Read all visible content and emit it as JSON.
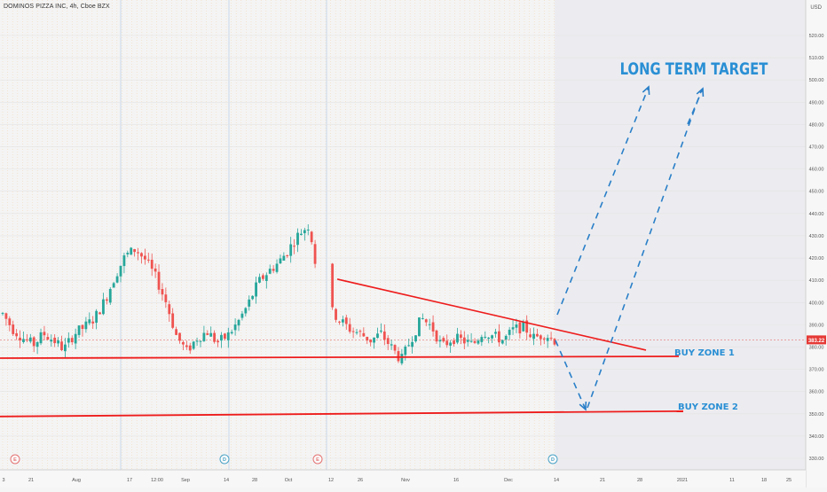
{
  "header": {
    "symbol_title": "DOMINOS PIZZA INC, 4h, Cboe BZX",
    "currency": "USD"
  },
  "annotations": {
    "long_term_target": "LONG TERM TARGET",
    "buy_zone_1": "BUY ZONE 1",
    "buy_zone_2": "BUY ZONE 2"
  },
  "price_badge": {
    "value": "383.22",
    "color": "#e53935"
  },
  "event_markers": [
    {
      "label": "E",
      "color": "#e57373"
    },
    {
      "label": "D",
      "color": "#4aa3c6"
    },
    {
      "label": "E",
      "color": "#e57373"
    },
    {
      "label": "D",
      "color": "#4aa3c6"
    }
  ],
  "chart_data": {
    "type": "candlestick",
    "title": "DOMINOS PIZZA INC, 4h, Cboe BZX",
    "x_tick_labels": [
      "3",
      "21",
      "Aug",
      "17",
      "12:00",
      "Sep",
      "14",
      "28",
      "Oct",
      "12",
      "26",
      "Nov",
      "16",
      "Dec",
      "14",
      "21",
      "28",
      "2021",
      "11",
      "18",
      "25"
    ],
    "y_ticks": [
      330,
      340,
      350,
      360,
      370,
      380,
      390,
      400,
      410,
      420,
      430,
      440,
      450,
      460,
      470,
      480,
      490,
      500,
      510,
      520
    ],
    "y_tick_labels": [
      "330.00",
      "340.00",
      "350.00",
      "360.00",
      "370.00",
      "380.00",
      "390.00",
      "400.00",
      "410.00",
      "420.00",
      "430.00",
      "440.00",
      "450.00",
      "460.00",
      "470.00",
      "480.00",
      "490.00",
      "500.00",
      "510.00",
      "520.00"
    ],
    "ylim": [
      325,
      530
    ],
    "last_price": 383.22,
    "approx_close_path": [
      395,
      388,
      384,
      381,
      386,
      383,
      379,
      386,
      389,
      393,
      401,
      412,
      421,
      424,
      419,
      411,
      400,
      385,
      378,
      384,
      387,
      382,
      385,
      391,
      399,
      409,
      414,
      418,
      424,
      431,
      435,
      406,
      397,
      392,
      388,
      386,
      383,
      386,
      380,
      374,
      384,
      393,
      389,
      380,
      384,
      383,
      381,
      387,
      385,
      383,
      388,
      389,
      384,
      386,
      383
    ],
    "series": [
      {
        "name": "up",
        "color": "#26a69a"
      },
      {
        "name": "down",
        "color": "#ef5350"
      }
    ],
    "drawings": {
      "support_1_price": 375,
      "support_2_price": 350,
      "descending_trendline_prices": [
        410.5,
        381
      ],
      "target_price": 498
    }
  }
}
